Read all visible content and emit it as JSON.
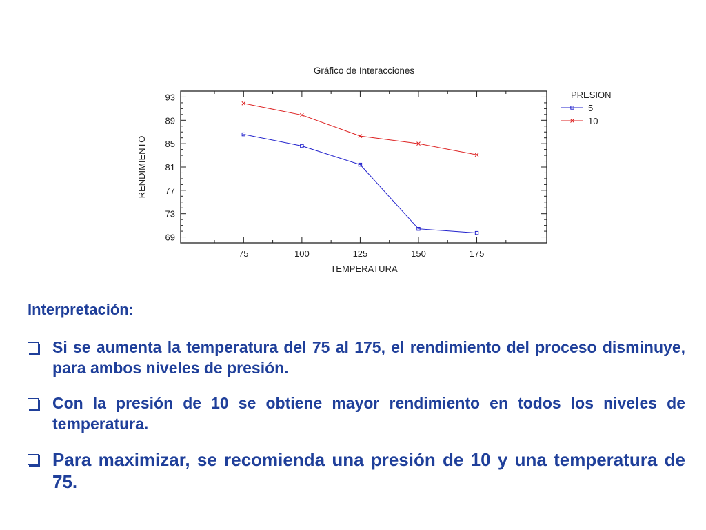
{
  "chart_data": {
    "type": "line",
    "title": "Gráfico de Interacciones",
    "xlabel": "TEMPERATURA",
    "ylabel": "RENDIMIENTO",
    "x": [
      75,
      100,
      125,
      150,
      175
    ],
    "x_ticks": [
      "75",
      "100",
      "125",
      "150",
      "175"
    ],
    "xlim": [
      48,
      205
    ],
    "ylim": [
      68,
      94
    ],
    "y_ticks": [
      69,
      73,
      77,
      81,
      85,
      89,
      93
    ],
    "legend_title": "PRESION",
    "legend_position": "right",
    "series": [
      {
        "name": "5",
        "values": [
          86.6,
          84.6,
          81.4,
          70.4,
          69.7
        ],
        "color": "#2222cc",
        "marker": "square"
      },
      {
        "name": "10",
        "values": [
          91.9,
          89.9,
          86.3,
          85.0,
          83.1
        ],
        "color": "#dd2222",
        "marker": "x"
      }
    ]
  },
  "interpretation": {
    "heading": "Interpretación:",
    "bullets": [
      "Si se aumenta la temperatura del 75 al 175, el rendimiento del proceso disminuye, para ambos niveles de presión.",
      "Con la presión de 10 se obtiene mayor rendimiento en todos los niveles de temperatura.",
      "Para maximizar, se recomienda una presión de 10 y una temperatura de 75."
    ],
    "text_color": "#1f3f9a"
  }
}
